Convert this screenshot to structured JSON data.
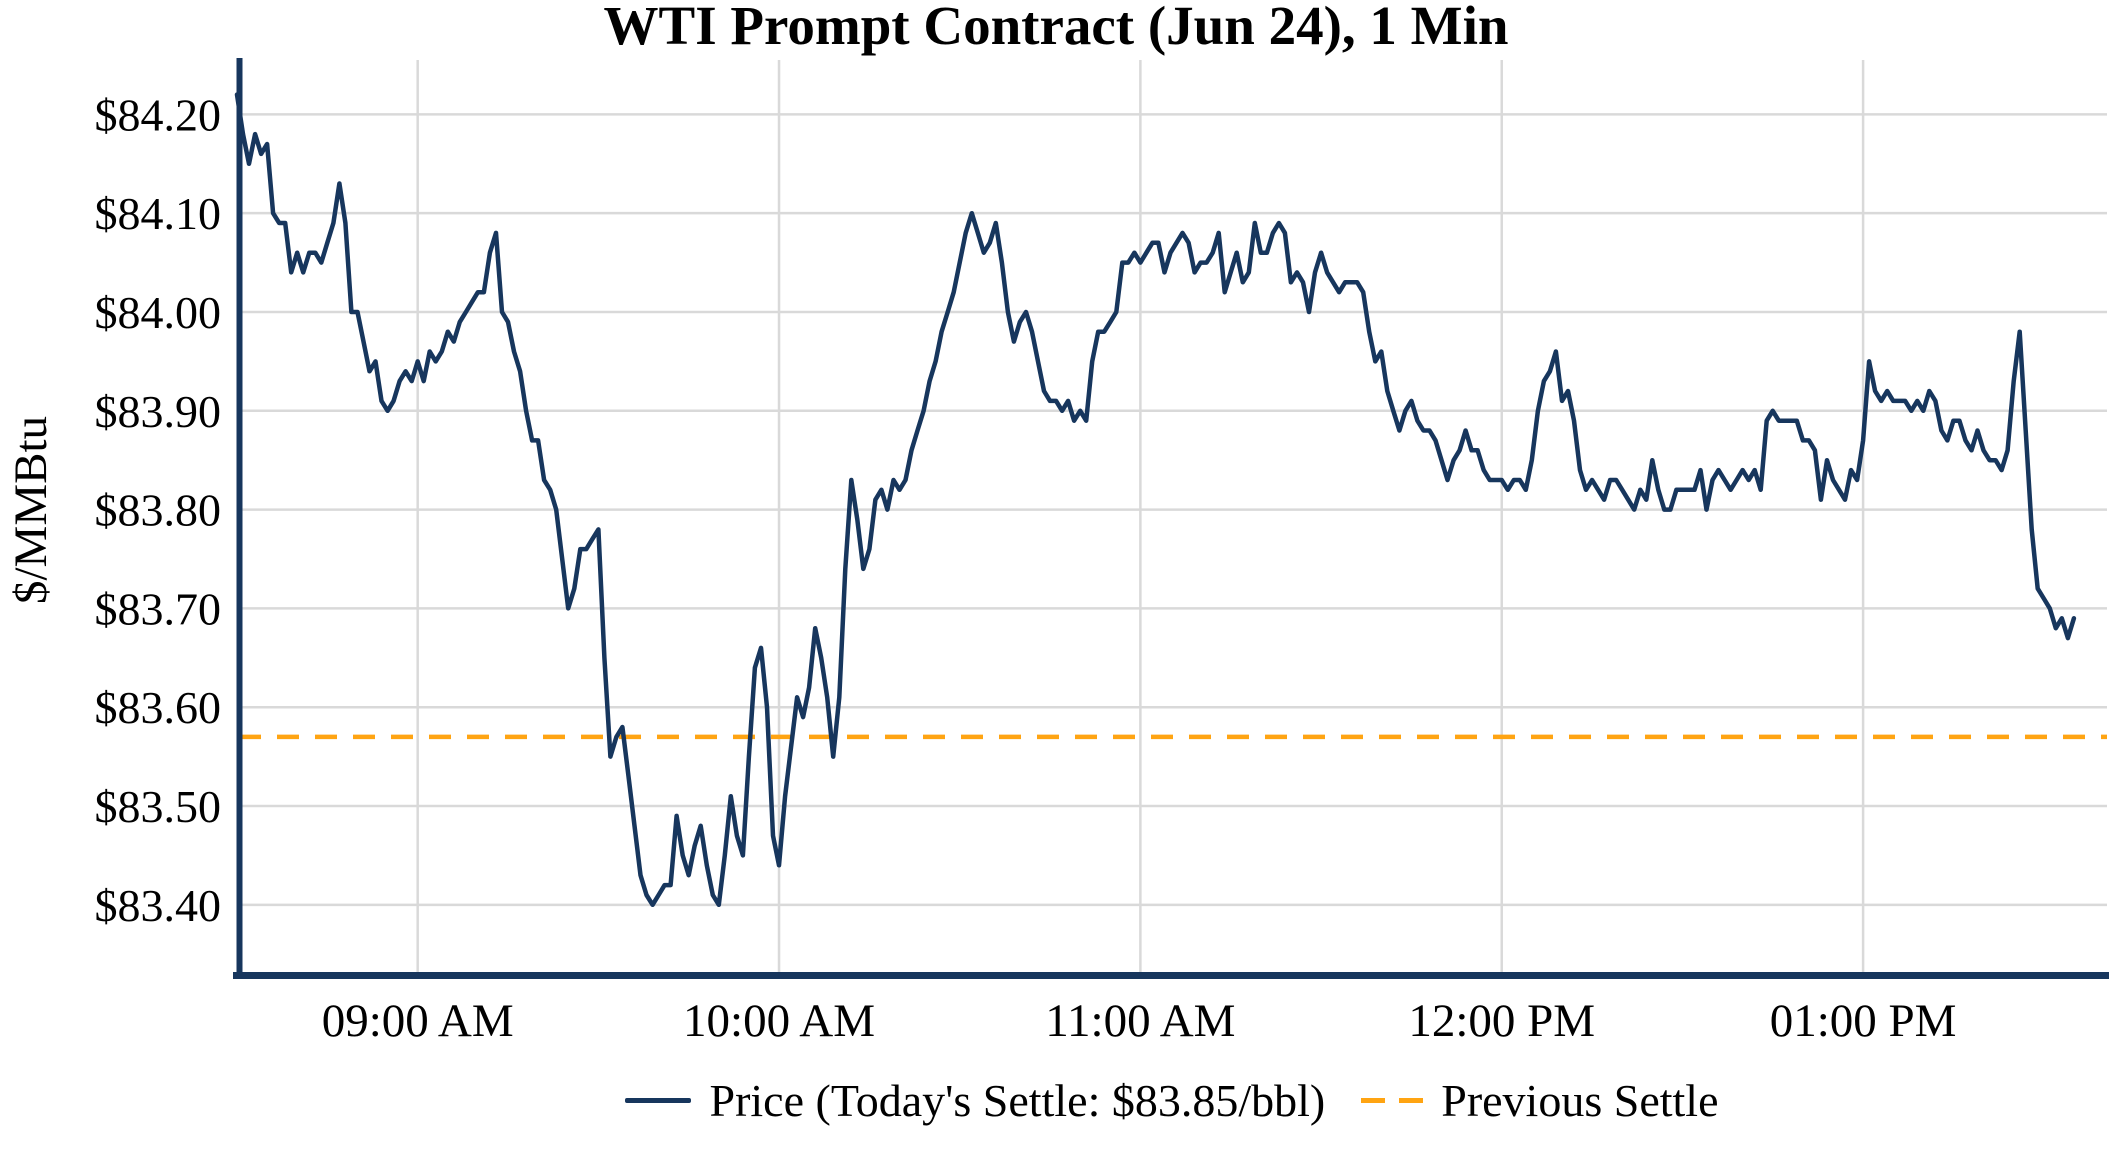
{
  "title": "WTI Prompt Contract (Jun 24), 1 Min",
  "y_axis": {
    "title": "$/MMBtu"
  },
  "legend": {
    "price_label": "Price (Today's Settle: $83.85/bbl)",
    "previous_settle_label": "Previous Settle"
  },
  "colors": {
    "price_line": "#17365d",
    "previous_settle_line": "#ffa412",
    "grid": "#d9d9d9",
    "text": "#000000",
    "background": "#ffffff"
  },
  "chart_data": {
    "type": "line",
    "title": "WTI Prompt Contract (Jun 24), 1 Min",
    "xlabel": "",
    "ylabel": "$/MMBtu",
    "grid": true,
    "legend_position": "bottom-center",
    "x_unit": "minutes-since-midnight, 1-minute interval",
    "x_start": 510,
    "x_step": 1,
    "xlim": [
      510,
      820.5
    ],
    "ylim": [
      83.329,
      84.255
    ],
    "x_ticks": [
      540,
      600,
      660,
      720,
      780
    ],
    "x_tick_labels": [
      "09:00 AM",
      "10:00 AM",
      "11:00 AM",
      "12:00 PM",
      "01:00 PM"
    ],
    "y_ticks": [
      84.2,
      84.1,
      84.0,
      83.9,
      83.8,
      83.7,
      83.6,
      83.5,
      83.4
    ],
    "y_tick_labels": [
      "$84.20",
      "$84.10",
      "$84.00",
      "$83.90",
      "$83.80",
      "$83.70",
      "$83.60",
      "$83.50",
      "$83.40"
    ],
    "previous_settle": 83.57,
    "todays_settle": 83.85,
    "series": [
      {
        "name": "Price",
        "color": "#17365d",
        "values": [
          84.22,
          84.18,
          84.15,
          84.18,
          84.16,
          84.17,
          84.1,
          84.09,
          84.09,
          84.04,
          84.06,
          84.04,
          84.06,
          84.06,
          84.05,
          84.07,
          84.09,
          84.13,
          84.09,
          84.0,
          84.0,
          83.97,
          83.94,
          83.95,
          83.91,
          83.9,
          83.91,
          83.93,
          83.94,
          83.93,
          83.95,
          83.93,
          83.96,
          83.95,
          83.96,
          83.98,
          83.97,
          83.99,
          84.0,
          84.01,
          84.02,
          84.02,
          84.06,
          84.08,
          84.0,
          83.99,
          83.96,
          83.94,
          83.9,
          83.87,
          83.87,
          83.83,
          83.82,
          83.8,
          83.75,
          83.7,
          83.72,
          83.76,
          83.76,
          83.77,
          83.78,
          83.65,
          83.55,
          83.57,
          83.58,
          83.53,
          83.48,
          83.43,
          83.41,
          83.4,
          83.41,
          83.42,
          83.42,
          83.49,
          83.45,
          83.43,
          83.46,
          83.48,
          83.44,
          83.41,
          83.4,
          83.45,
          83.51,
          83.47,
          83.45,
          83.55,
          83.64,
          83.66,
          83.6,
          83.47,
          83.44,
          83.51,
          83.56,
          83.61,
          83.59,
          83.62,
          83.68,
          83.65,
          83.61,
          83.55,
          83.61,
          83.74,
          83.83,
          83.79,
          83.74,
          83.76,
          83.81,
          83.82,
          83.8,
          83.83,
          83.82,
          83.83,
          83.86,
          83.88,
          83.9,
          83.93,
          83.95,
          83.98,
          84.0,
          84.02,
          84.05,
          84.08,
          84.1,
          84.08,
          84.06,
          84.07,
          84.09,
          84.05,
          84.0,
          83.97,
          83.99,
          84.0,
          83.98,
          83.95,
          83.92,
          83.91,
          83.91,
          83.9,
          83.91,
          83.89,
          83.9,
          83.89,
          83.95,
          83.98,
          83.98,
          83.99,
          84.0,
          84.05,
          84.05,
          84.06,
          84.05,
          84.06,
          84.07,
          84.07,
          84.04,
          84.06,
          84.07,
          84.08,
          84.07,
          84.04,
          84.05,
          84.05,
          84.06,
          84.08,
          84.02,
          84.04,
          84.06,
          84.03,
          84.04,
          84.09,
          84.06,
          84.06,
          84.08,
          84.09,
          84.08,
          84.03,
          84.04,
          84.03,
          84.0,
          84.04,
          84.06,
          84.04,
          84.03,
          84.02,
          84.03,
          84.03,
          84.03,
          84.02,
          83.98,
          83.95,
          83.96,
          83.92,
          83.9,
          83.88,
          83.9,
          83.91,
          83.89,
          83.88,
          83.88,
          83.87,
          83.85,
          83.83,
          83.85,
          83.86,
          83.88,
          83.86,
          83.86,
          83.84,
          83.83,
          83.83,
          83.83,
          83.82,
          83.83,
          83.83,
          83.82,
          83.85,
          83.9,
          83.93,
          83.94,
          83.96,
          83.91,
          83.92,
          83.89,
          83.84,
          83.82,
          83.83,
          83.82,
          83.81,
          83.83,
          83.83,
          83.82,
          83.81,
          83.8,
          83.82,
          83.81,
          83.85,
          83.82,
          83.8,
          83.8,
          83.82,
          83.82,
          83.82,
          83.82,
          83.84,
          83.8,
          83.83,
          83.84,
          83.83,
          83.82,
          83.83,
          83.84,
          83.83,
          83.84,
          83.82,
          83.89,
          83.9,
          83.89,
          83.89,
          83.89,
          83.89,
          83.87,
          83.87,
          83.86,
          83.81,
          83.85,
          83.83,
          83.82,
          83.81,
          83.84,
          83.83,
          83.87,
          83.95,
          83.92,
          83.91,
          83.92,
          83.91,
          83.91,
          83.91,
          83.9,
          83.91,
          83.9,
          83.92,
          83.91,
          83.88,
          83.87,
          83.89,
          83.89,
          83.87,
          83.86,
          83.88,
          83.86,
          83.85,
          83.85,
          83.84,
          83.86,
          83.93,
          83.98,
          83.88,
          83.78,
          83.72,
          83.71,
          83.7,
          83.68,
          83.69,
          83.67,
          83.69
        ]
      },
      {
        "name": "Previous Settle",
        "color": "#ffa412",
        "style": "dashed",
        "constant_value": 83.57
      }
    ]
  }
}
